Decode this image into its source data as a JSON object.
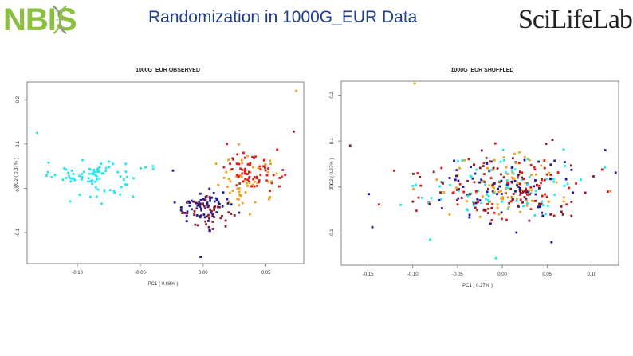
{
  "header": {
    "title": "Randomization in 1000G_EUR Data",
    "logo_left": "NBIS",
    "logo_right": "SciLifeLab"
  },
  "colors": {
    "cyan": "#1de9f2",
    "navy": "#1d1a9c",
    "brown": "#8b1a2b",
    "red": "#e01b1b",
    "orange": "#f0a21c",
    "title_blue": "#1f3e8f",
    "nbis_green": "#8cbf3f"
  },
  "chart_data": [
    {
      "type": "scatter",
      "title": "1000G_EUR OBSERVED",
      "xlabel": "PC1 ( 0.68% )",
      "ylabel": "PC2 ( 0.37% )",
      "xlim": [
        -0.14,
        0.08
      ],
      "ylim": [
        -0.17,
        0.24
      ],
      "xticks": [
        "-0.10",
        "-0.05",
        "0.00",
        "0.05"
      ],
      "yticks": [
        "-0.1",
        "0.0",
        "0.1",
        "0.2"
      ],
      "series": [
        {
          "color": "cyan",
          "cx": -0.085,
          "cy": 0.03,
          "sx": 0.018,
          "sy": 0.022,
          "rot": -0.35,
          "n": 85
        },
        {
          "color": "navy",
          "cx": 0.0,
          "cy": -0.04,
          "sx": 0.011,
          "sy": 0.018,
          "rot": 0.0,
          "n": 60
        },
        {
          "color": "brown",
          "cx": 0.004,
          "cy": -0.055,
          "sx": 0.01,
          "sy": 0.016,
          "rot": 0.0,
          "n": 45
        },
        {
          "color": "orange",
          "cx": 0.036,
          "cy": 0.01,
          "sx": 0.014,
          "sy": 0.03,
          "rot": 0.0,
          "n": 55
        },
        {
          "color": "red",
          "cx": 0.04,
          "cy": 0.04,
          "sx": 0.011,
          "sy": 0.022,
          "rot": 0.0,
          "n": 70
        }
      ],
      "extra_points": [
        {
          "x": -0.132,
          "y": 0.125,
          "color": "cyan"
        },
        {
          "x": 0.074,
          "y": 0.22,
          "color": "orange"
        },
        {
          "x": 0.072,
          "y": 0.128,
          "color": "brown"
        },
        {
          "x": -0.002,
          "y": -0.155,
          "color": "navy"
        },
        {
          "x": -0.024,
          "y": 0.04,
          "color": "navy"
        }
      ]
    },
    {
      "type": "scatter",
      "title": "1000G_EUR SHUFFLED",
      "xlabel": "PC1 ( 0.27% )",
      "ylabel": "PC2 ( 0.27% )",
      "xlim": [
        -0.18,
        0.13
      ],
      "ylim": [
        -0.17,
        0.23
      ],
      "xticks": [
        "-0.15",
        "-0.10",
        "-0.05",
        "0.00",
        "0.05",
        "0.10"
      ],
      "yticks": [
        "-0.1",
        "0.0",
        "0.1",
        "0.2"
      ],
      "series": [
        {
          "color": "cyan",
          "cx": 0.0,
          "cy": 0.0,
          "sx": 0.045,
          "sy": 0.038,
          "rot": 0.0,
          "n": 75
        },
        {
          "color": "navy",
          "cx": 0.0,
          "cy": 0.0,
          "sx": 0.045,
          "sy": 0.038,
          "rot": 0.0,
          "n": 75
        },
        {
          "color": "brown",
          "cx": 0.0,
          "cy": 0.0,
          "sx": 0.045,
          "sy": 0.038,
          "rot": 0.0,
          "n": 70
        },
        {
          "color": "orange",
          "cx": 0.0,
          "cy": 0.0,
          "sx": 0.045,
          "sy": 0.038,
          "rot": 0.0,
          "n": 70
        },
        {
          "color": "red",
          "cx": 0.0,
          "cy": 0.0,
          "sx": 0.045,
          "sy": 0.038,
          "rot": 0.0,
          "n": 75
        }
      ],
      "extra_points": [
        {
          "x": -0.098,
          "y": 0.225,
          "color": "orange"
        },
        {
          "x": -0.17,
          "y": 0.09,
          "color": "brown"
        },
        {
          "x": -0.007,
          "y": -0.155,
          "color": "cyan"
        },
        {
          "x": 0.115,
          "y": 0.08,
          "color": "navy"
        },
        {
          "x": 0.118,
          "y": -0.01,
          "color": "red"
        },
        {
          "x": 0.055,
          "y": -0.12,
          "color": "navy"
        }
      ]
    }
  ]
}
